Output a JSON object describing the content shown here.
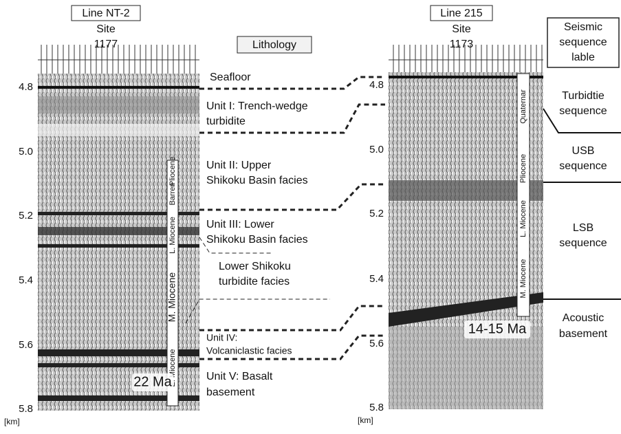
{
  "left_section": {
    "line": "Line NT-2",
    "site": "Site",
    "site_number": "1177",
    "depth_ticks": [
      "4.8",
      "5.0",
      "5.2",
      "5.4",
      "5.6",
      "5.8"
    ],
    "depth_unit": "[km]",
    "ages": [
      "Pliocene",
      "Barren",
      "L. Miocene",
      "M. Miocene",
      "E. Miocene"
    ],
    "age_marker": "22 Ma"
  },
  "right_section": {
    "line": "Line 215",
    "site": "Site",
    "site_number": "1173",
    "depth_ticks": [
      "4.8",
      "5.0",
      "5.2",
      "5.4",
      "5.6",
      "5.8"
    ],
    "depth_unit": "[km]",
    "ages": [
      "Quaternar",
      "Pliocene",
      "L. Miocene",
      "M. Miocene"
    ],
    "age_marker": "14-15 Ma"
  },
  "lithology": {
    "title": "Lithology",
    "units": [
      [
        "Seafloor"
      ],
      [
        "Unit I: Trench-wedge",
        "turbidite"
      ],
      [
        "Unit II: Upper",
        "Shikoku Basin facies"
      ],
      [
        "Unit III: Lower",
        "Shikoku Basin facies"
      ],
      [
        "Lower Shikoku",
        "turbidite facies"
      ],
      [
        "Unit IV:",
        "Volcaniclastic facies"
      ],
      [
        "Unit V: Basalt",
        "basement"
      ]
    ]
  },
  "sequences": {
    "title": [
      "Seismic",
      "sequence",
      "lable"
    ],
    "items": [
      [
        "Turbidtie",
        "sequence"
      ],
      [
        "USB",
        "sequence"
      ],
      [
        "LSB",
        "sequence"
      ],
      [
        "Acoustic",
        "basement"
      ]
    ]
  }
}
